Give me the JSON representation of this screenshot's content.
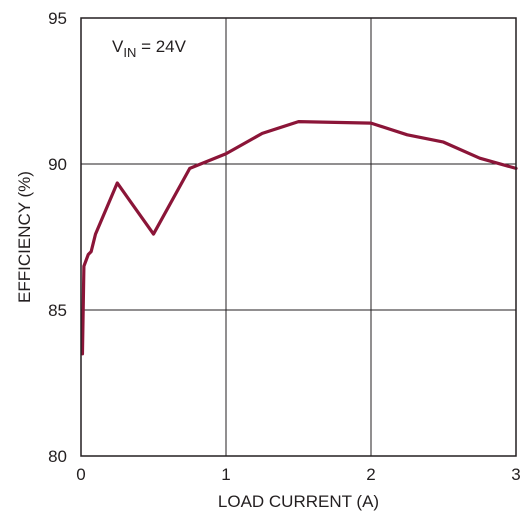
{
  "chart_data": {
    "type": "line",
    "title": "",
    "xlabel": "LOAD CURRENT (A)",
    "ylabel": "EFFICIENCY (%)",
    "xlim": [
      0,
      3
    ],
    "ylim": [
      80,
      95
    ],
    "xticks": [
      0,
      1,
      2,
      3
    ],
    "yticks": [
      80,
      85,
      90,
      95
    ],
    "grid": true,
    "annotation": {
      "main": "V",
      "subscript": "IN",
      "rest": " = 24V"
    },
    "line_color": "#8b1538",
    "series": [
      {
        "x": [
          0.01,
          0.02,
          0.05,
          0.07,
          0.1,
          0.25,
          0.5,
          0.75,
          1.0,
          1.25,
          1.5,
          2.0,
          2.25,
          2.5,
          2.75,
          3.0
        ],
        "values": [
          83.5,
          86.5,
          86.9,
          87.0,
          87.6,
          89.35,
          87.6,
          89.85,
          90.35,
          91.05,
          91.45,
          91.4,
          91.0,
          90.75,
          90.2,
          89.85
        ]
      }
    ]
  }
}
